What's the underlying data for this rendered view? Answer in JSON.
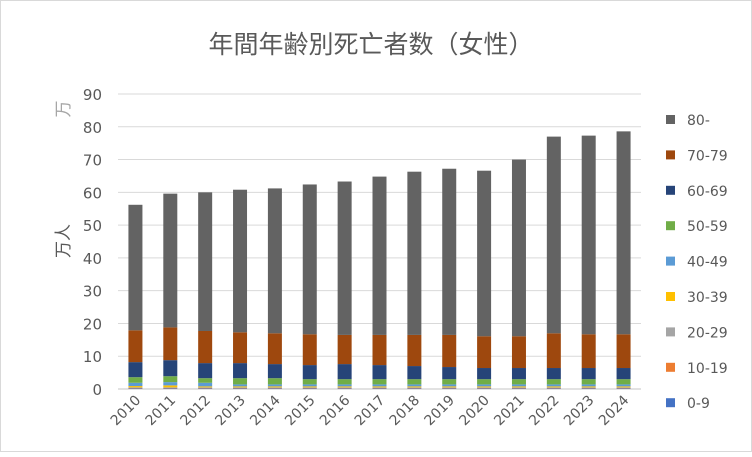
{
  "chart_data": {
    "type": "bar",
    "stacked": true,
    "title": "年間年齢別死亡者数（女性）",
    "ylabel": "万人",
    "yunit_top": "万",
    "xlabel": "",
    "ylim": [
      0,
      90
    ],
    "yticks": [
      0,
      10,
      20,
      30,
      40,
      50,
      60,
      70,
      80,
      90
    ],
    "grid": true,
    "legend_position": "right",
    "categories": [
      "2010",
      "2011",
      "2012",
      "2013",
      "2014",
      "2015",
      "2016",
      "2017",
      "2018",
      "2019",
      "2020",
      "2021",
      "2022",
      "2023",
      "2024"
    ],
    "series": [
      {
        "name": "0-9",
        "color": "#4472C4",
        "values": [
          0.2,
          0.2,
          0.2,
          0.2,
          0.2,
          0.2,
          0.2,
          0.2,
          0.2,
          0.2,
          0.2,
          0.2,
          0.2,
          0.2,
          0.2
        ]
      },
      {
        "name": "10-19",
        "color": "#ED7D31",
        "values": [
          0.1,
          0.1,
          0.1,
          0.1,
          0.1,
          0.1,
          0.1,
          0.1,
          0.1,
          0.1,
          0.1,
          0.1,
          0.1,
          0.1,
          0.1
        ]
      },
      {
        "name": "20-29",
        "color": "#A5A5A5",
        "values": [
          0.2,
          0.2,
          0.2,
          0.2,
          0.2,
          0.2,
          0.2,
          0.2,
          0.2,
          0.2,
          0.2,
          0.2,
          0.2,
          0.2,
          0.2
        ]
      },
      {
        "name": "30-39",
        "color": "#FFC000",
        "values": [
          0.4,
          0.6,
          0.3,
          0.3,
          0.3,
          0.3,
          0.3,
          0.3,
          0.3,
          0.3,
          0.3,
          0.3,
          0.3,
          0.3,
          0.3
        ]
      },
      {
        "name": "40-49",
        "color": "#5B9BD5",
        "values": [
          1.0,
          1.0,
          1.1,
          0.6,
          0.6,
          0.6,
          0.6,
          0.6,
          0.6,
          0.6,
          0.6,
          0.6,
          0.6,
          0.6,
          0.6
        ]
      },
      {
        "name": "50-59",
        "color": "#70AD47",
        "values": [
          1.7,
          1.8,
          1.4,
          1.9,
          1.9,
          1.6,
          1.6,
          1.6,
          1.6,
          1.6,
          1.6,
          1.6,
          1.6,
          1.6,
          1.6
        ]
      },
      {
        "name": "60-69",
        "color": "#264478",
        "values": [
          4.6,
          4.9,
          4.6,
          4.6,
          4.3,
          4.3,
          4.6,
          4.3,
          4.0,
          3.7,
          3.4,
          3.4,
          3.4,
          3.4,
          3.4
        ]
      },
      {
        "name": "70-79",
        "color": "#9E480E",
        "values": [
          9.7,
          10.0,
          9.8,
          9.4,
          9.4,
          9.4,
          8.9,
          9.2,
          9.5,
          9.8,
          9.7,
          9.7,
          10.6,
          10.3,
          10.3
        ]
      },
      {
        "name": "80-",
        "color": "#636363",
        "values": [
          38.3,
          40.8,
          42.3,
          43.5,
          44.2,
          45.7,
          46.8,
          48.3,
          49.8,
          50.7,
          50.5,
          53.9,
          60.0,
          60.6,
          61.9
        ]
      }
    ]
  }
}
